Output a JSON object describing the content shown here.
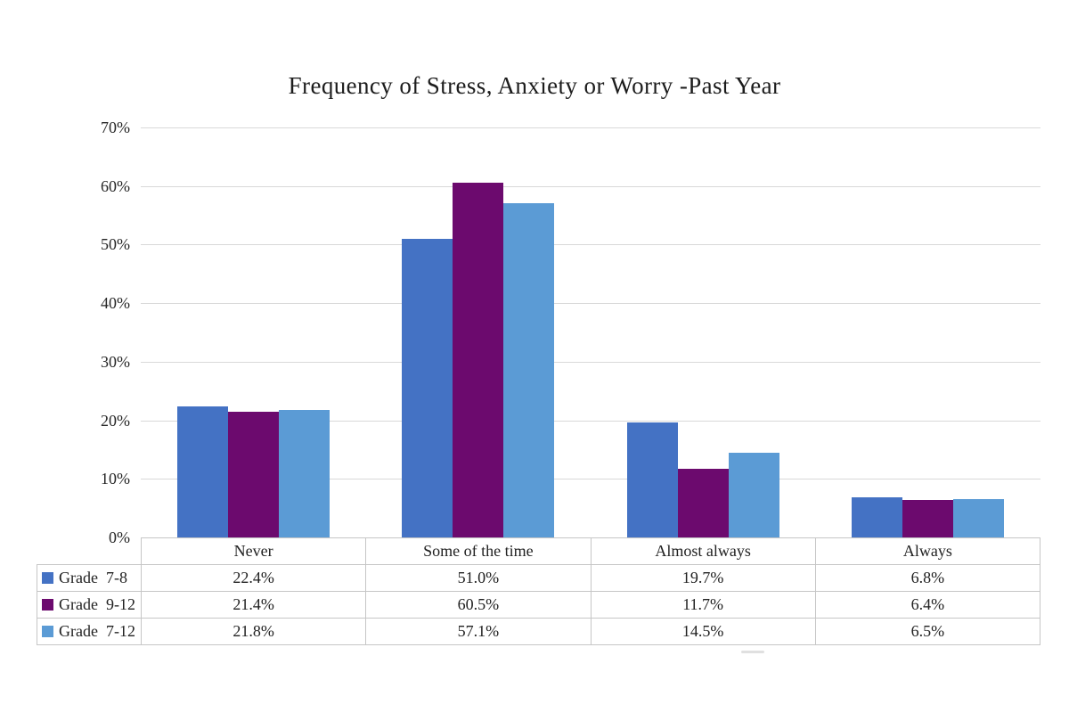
{
  "chart_data": {
    "type": "bar",
    "title": "Frequency of Stress, Anxiety or Worry -Past Year",
    "categories": [
      "Never",
      "Some of the time",
      "Almost always",
      "Always"
    ],
    "series": [
      {
        "name": "Grade  7-8",
        "color": "#4472C4",
        "values": [
          22.4,
          51.0,
          19.7,
          6.8
        ]
      },
      {
        "name": "Grade  9-12",
        "color": "#6C0A6E",
        "values": [
          21.4,
          60.5,
          11.7,
          6.4
        ]
      },
      {
        "name": "Grade  7-12",
        "color": "#5B9BD5",
        "values": [
          21.8,
          57.1,
          14.5,
          6.5
        ]
      }
    ],
    "ylabel": "",
    "xlabel": "",
    "ylim": [
      0,
      70
    ],
    "ytick_step": 10,
    "ytick_labels": [
      "0%",
      "10%",
      "20%",
      "30%",
      "40%",
      "50%",
      "60%",
      "70%"
    ],
    "grid": true,
    "gridline_color": "#D9D9D9",
    "legend_position": "data-table-left",
    "value_suffix": "%"
  },
  "colors": {
    "background": "#FFFFFF",
    "table_border": "#C6C6C6",
    "text": "#212121"
  }
}
